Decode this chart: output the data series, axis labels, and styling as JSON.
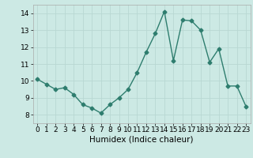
{
  "x": [
    0,
    1,
    2,
    3,
    4,
    5,
    6,
    7,
    8,
    9,
    10,
    11,
    12,
    13,
    14,
    15,
    16,
    17,
    18,
    19,
    20,
    21,
    22,
    23
  ],
  "y": [
    10.1,
    9.8,
    9.5,
    9.6,
    9.2,
    8.6,
    8.4,
    8.1,
    8.6,
    9.0,
    9.5,
    10.5,
    11.7,
    12.8,
    14.1,
    11.2,
    13.6,
    13.55,
    13.0,
    11.1,
    11.9,
    9.7,
    9.7,
    8.5
  ],
  "line_color": "#2e7d6e",
  "marker": "D",
  "markersize": 2.5,
  "linewidth": 1.0,
  "xlabel": "Humidex (Indice chaleur)",
  "xlabel_fontsize": 7.5,
  "bg_color": "#cce9e4",
  "grid_color": "#b8d8d3",
  "xlim": [
    -0.5,
    23.5
  ],
  "ylim": [
    7.5,
    14.5
  ],
  "yticks": [
    8,
    9,
    10,
    11,
    12,
    13,
    14
  ],
  "xticks": [
    0,
    1,
    2,
    3,
    4,
    5,
    6,
    7,
    8,
    9,
    10,
    11,
    12,
    13,
    14,
    15,
    16,
    17,
    18,
    19,
    20,
    21,
    22,
    23
  ],
  "tick_fontsize": 6.5
}
